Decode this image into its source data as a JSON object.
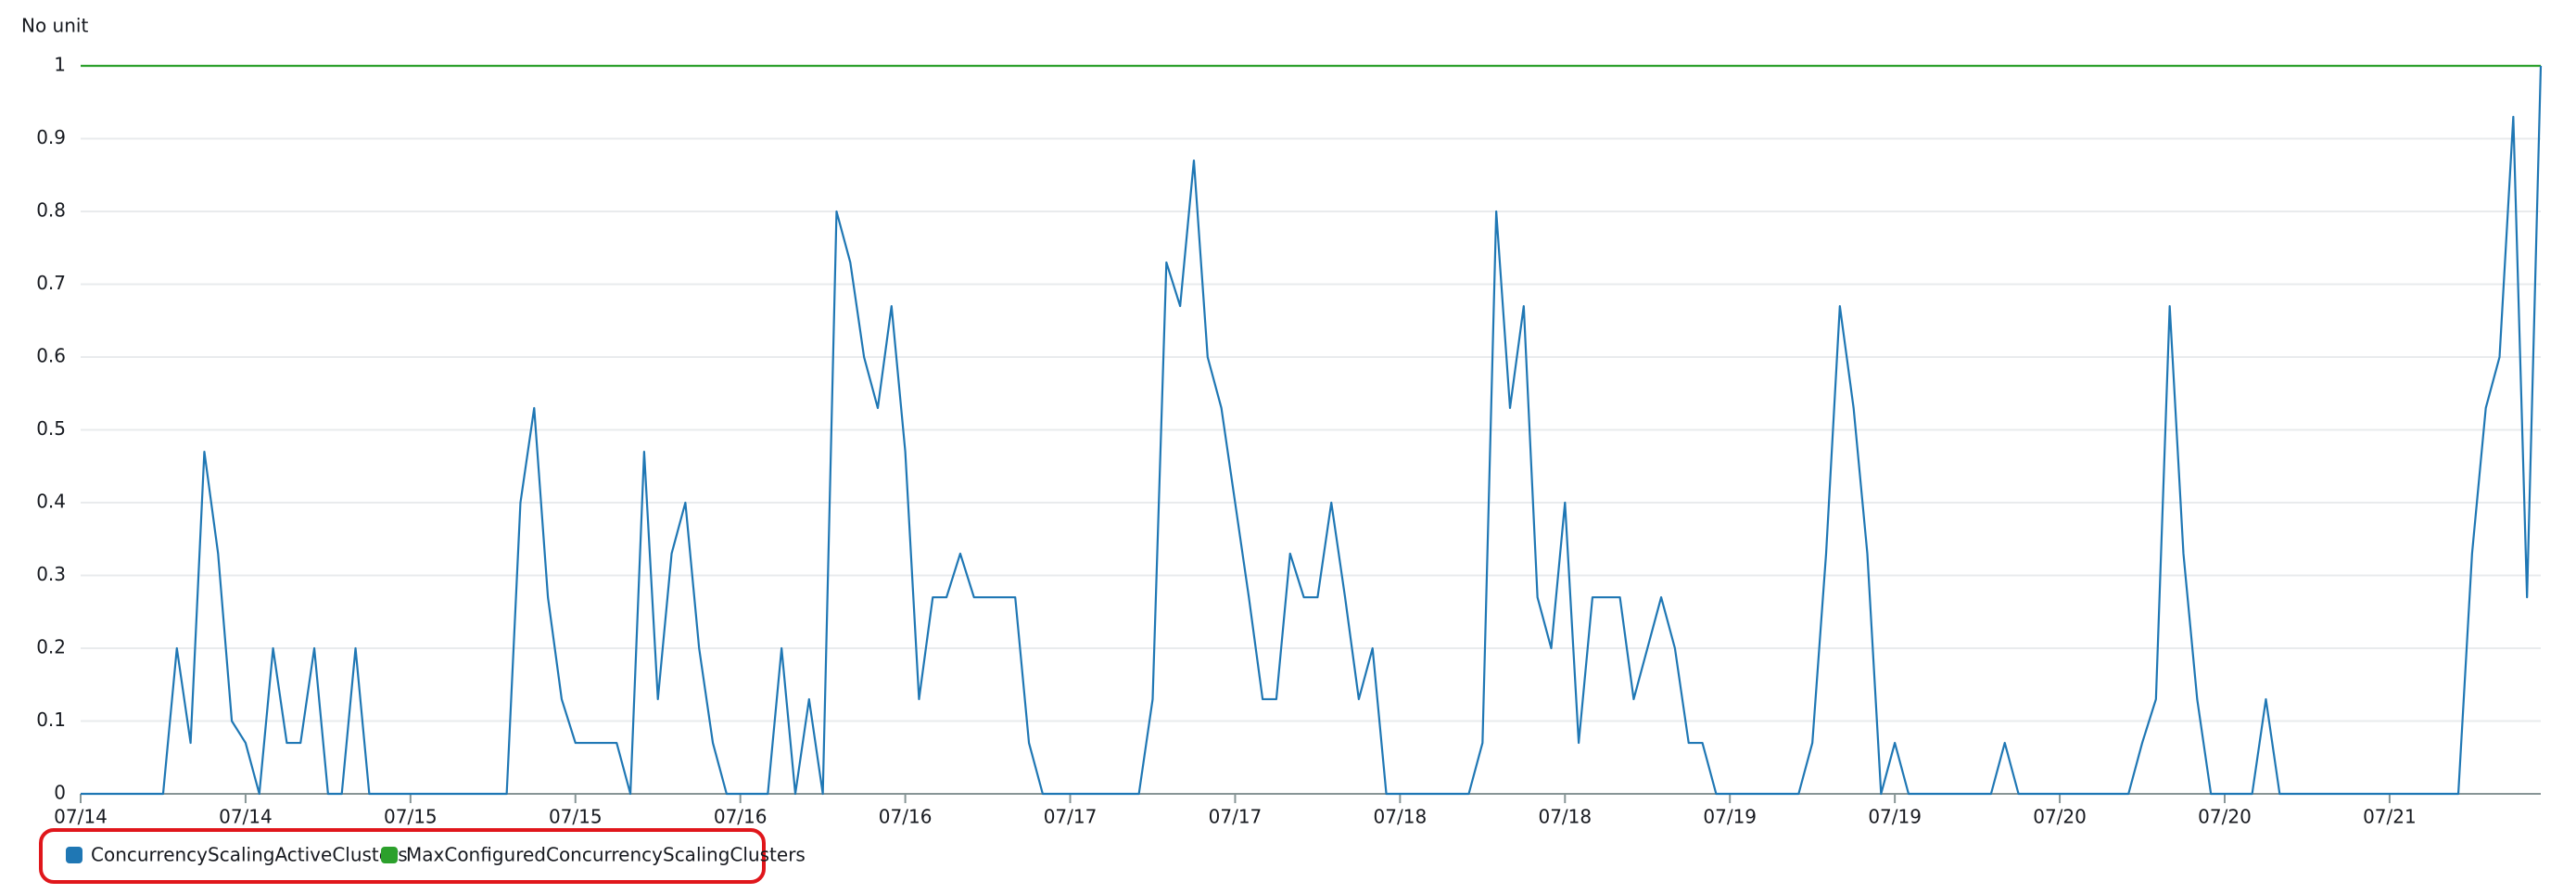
{
  "chart_data": {
    "type": "line",
    "y_axis_label": "No unit",
    "xlim": [
      0,
      179
    ],
    "xticks": [
      {
        "value": 0,
        "label": "07/14"
      },
      {
        "value": 12,
        "label": "07/14"
      },
      {
        "value": 24,
        "label": "07/15"
      },
      {
        "value": 36,
        "label": "07/15"
      },
      {
        "value": 48,
        "label": "07/16"
      },
      {
        "value": 60,
        "label": "07/16"
      },
      {
        "value": 72,
        "label": "07/17"
      },
      {
        "value": 84,
        "label": "07/17"
      },
      {
        "value": 96,
        "label": "07/18"
      },
      {
        "value": 108,
        "label": "07/18"
      },
      {
        "value": 120,
        "label": "07/19"
      },
      {
        "value": 132,
        "label": "07/19"
      },
      {
        "value": 144,
        "label": "07/20"
      },
      {
        "value": 156,
        "label": "07/20"
      },
      {
        "value": 168,
        "label": "07/21"
      }
    ],
    "ylim": [
      0,
      1
    ],
    "yticks": [
      0,
      0.1,
      0.2,
      0.3,
      0.4,
      0.5,
      0.6,
      0.7,
      0.8,
      0.9,
      1
    ],
    "grid": true,
    "series": [
      {
        "name": "ConcurrencyScalingActiveClusters",
        "color": "#1f77b4",
        "values": [
          0,
          0,
          0,
          0,
          0,
          0,
          0,
          0.2,
          0.07,
          0.47,
          0.33,
          0.1,
          0.07,
          0,
          0.2,
          0.07,
          0.07,
          0.2,
          0,
          0,
          0.2,
          0,
          0,
          0,
          0,
          0,
          0,
          0,
          0,
          0,
          0,
          0,
          0.4,
          0.53,
          0.27,
          0.13,
          0.07,
          0.07,
          0.07,
          0.07,
          0,
          0.47,
          0.13,
          0.33,
          0.4,
          0.2,
          0.07,
          0,
          0,
          0,
          0,
          0.2,
          0,
          0.13,
          0,
          0.8,
          0.73,
          0.6,
          0.53,
          0.67,
          0.47,
          0.13,
          0.27,
          0.27,
          0.33,
          0.27,
          0.27,
          0.27,
          0.27,
          0.07,
          0,
          0,
          0,
          0,
          0,
          0,
          0,
          0,
          0.13,
          0.73,
          0.67,
          0.87,
          0.6,
          0.53,
          0.4,
          0.27,
          0.13,
          0.13,
          0.33,
          0.27,
          0.27,
          0.4,
          0.27,
          0.13,
          0.2,
          0,
          0,
          0,
          0,
          0,
          0,
          0,
          0.07,
          0.8,
          0.53,
          0.67,
          0.27,
          0.2,
          0.4,
          0.07,
          0.27,
          0.27,
          0.27,
          0.13,
          0.2,
          0.27,
          0.2,
          0.07,
          0.07,
          0,
          0,
          0,
          0,
          0,
          0,
          0,
          0.07,
          0.33,
          0.67,
          0.53,
          0.33,
          0,
          0.07,
          0,
          0,
          0,
          0,
          0,
          0,
          0,
          0.07,
          0,
          0,
          0,
          0,
          0,
          0,
          0,
          0,
          0,
          0.07,
          0.13,
          0.67,
          0.33,
          0.13,
          0,
          0,
          0,
          0,
          0.13,
          0,
          0,
          0,
          0,
          0,
          0,
          0,
          0,
          0,
          0,
          0,
          0,
          0,
          0,
          0.33,
          0.53,
          0.6,
          0.93,
          0.27,
          1
        ]
      },
      {
        "name": "MaxConfiguredConcurrencyScalingClusters",
        "color": "#2ca02c",
        "values": [
          1,
          1,
          1,
          1,
          1,
          1,
          1,
          1,
          1,
          1,
          1,
          1,
          1,
          1,
          1,
          1,
          1,
          1,
          1,
          1,
          1,
          1,
          1,
          1,
          1,
          1,
          1,
          1,
          1,
          1,
          1,
          1,
          1,
          1,
          1,
          1,
          1,
          1,
          1,
          1,
          1,
          1,
          1,
          1,
          1,
          1,
          1,
          1,
          1,
          1,
          1,
          1,
          1,
          1,
          1,
          1,
          1,
          1,
          1,
          1,
          1,
          1,
          1,
          1,
          1,
          1,
          1,
          1,
          1,
          1,
          1,
          1,
          1,
          1,
          1,
          1,
          1,
          1,
          1,
          1,
          1,
          1,
          1,
          1,
          1,
          1,
          1,
          1,
          1,
          1,
          1,
          1,
          1,
          1,
          1,
          1,
          1,
          1,
          1,
          1,
          1,
          1,
          1,
          1,
          1,
          1,
          1,
          1,
          1,
          1,
          1,
          1,
          1,
          1,
          1,
          1,
          1,
          1,
          1,
          1,
          1,
          1,
          1,
          1,
          1,
          1,
          1,
          1,
          1,
          1,
          1,
          1,
          1,
          1,
          1,
          1,
          1,
          1,
          1,
          1,
          1,
          1,
          1,
          1,
          1,
          1,
          1,
          1,
          1,
          1,
          1,
          1,
          1,
          1,
          1,
          1,
          1,
          1,
          1,
          1,
          1,
          1,
          1,
          1,
          1,
          1,
          1,
          1,
          1,
          1,
          1,
          1,
          1,
          1,
          1,
          1,
          1,
          1,
          1,
          1
        ]
      }
    ]
  }
}
